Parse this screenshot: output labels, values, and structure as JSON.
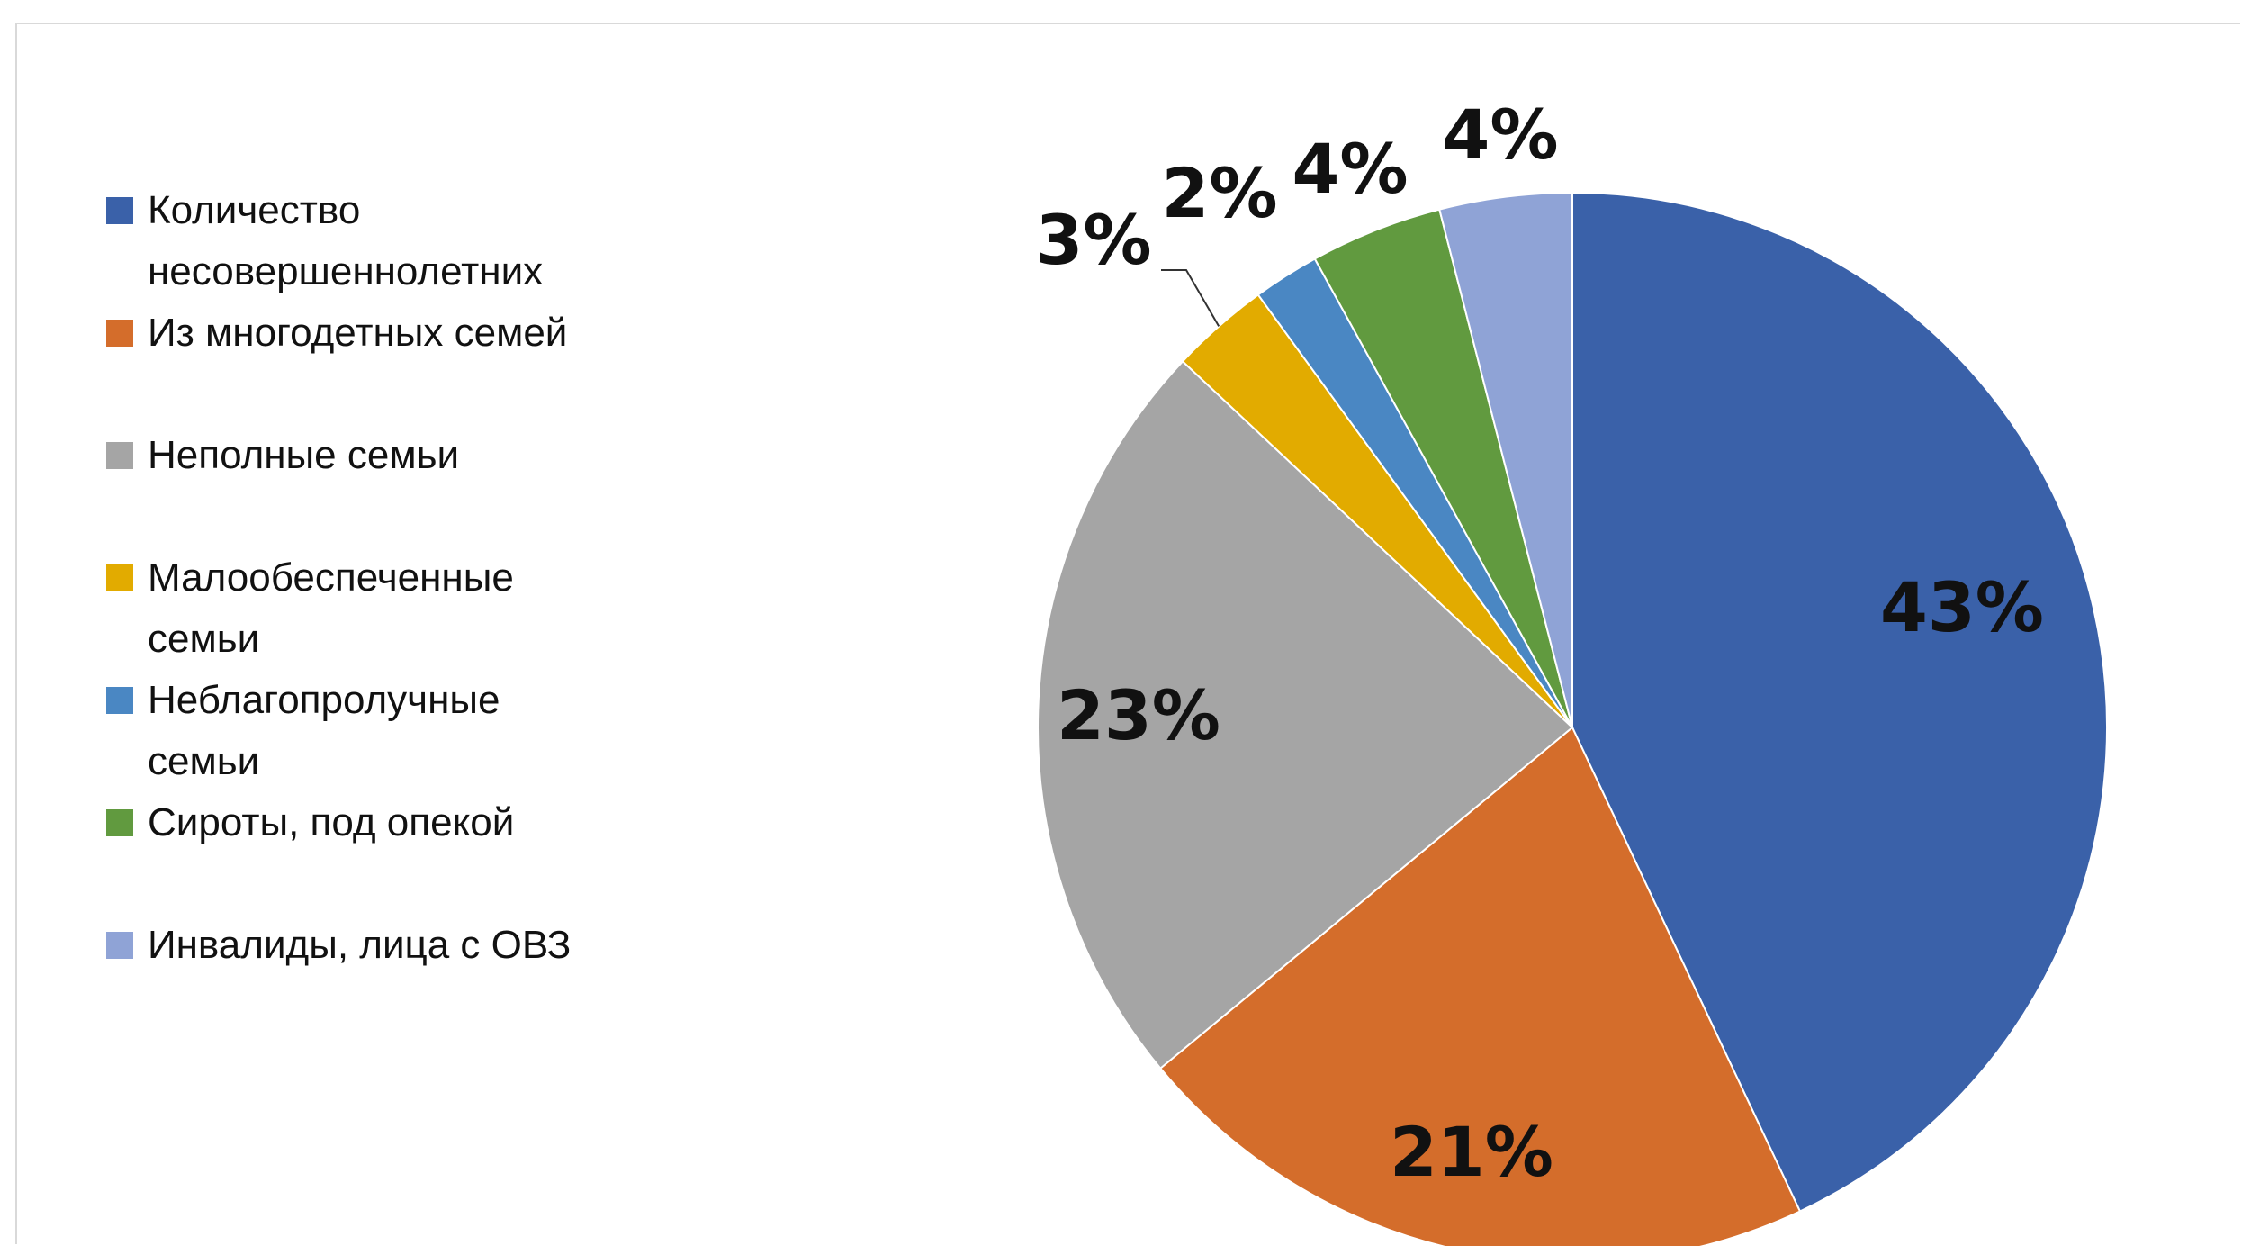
{
  "chart_data": {
    "type": "pie",
    "title": "",
    "legend_position": "left",
    "slices": [
      {
        "label": "Количество несовершеннолетних",
        "value": 43,
        "value_label": "43%",
        "color": "#3A61A9"
      },
      {
        "label": "Из многодетных семей",
        "value": 21,
        "value_label": "21%",
        "color": "#D46D2B"
      },
      {
        "label": "Неполные семьи",
        "value": 23,
        "value_label": "23%",
        "color": "#A5A5A5"
      },
      {
        "label": "Малообеспеченные семьи",
        "value": 3,
        "value_label": "3%",
        "color": "#E2AB00"
      },
      {
        "label": "Неблагопролучные семьи",
        "value": 2,
        "value_label": "2%",
        "color": "#4A87C3"
      },
      {
        "label": "Сироты, под опекой",
        "value": 4,
        "value_label": "4%",
        "color": "#619A3F"
      },
      {
        "label": "Инвалиды, лица с ОВЗ",
        "value": 4,
        "value_label": "4%",
        "color": "#8FA3D6"
      }
    ]
  }
}
